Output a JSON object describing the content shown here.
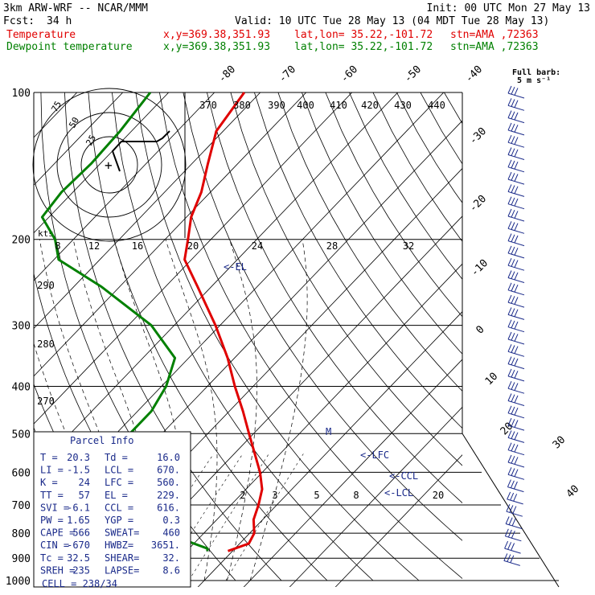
{
  "header": {
    "model": "3km ARW-WRF -- NCAR/MMM",
    "init": "Init: 00 UTC Mon 27 May 13",
    "fcst_label": "Fcst:",
    "fcst_value": "34 h",
    "valid": "Valid: 10 UTC Tue 28 May 13 (04 MDT Tue 28 May 13)"
  },
  "legend": [
    {
      "label": "Temperature",
      "coords": "x,y=369.38,351.93",
      "latlon": "lat,lon= 35.22,-101.72",
      "stn": "stn=AMA ,72363",
      "color": "#e00000"
    },
    {
      "label": "Dewpoint temperature",
      "coords": "x,y=369.38,351.93",
      "latlon": "lat,lon= 35.22,-101.72",
      "stn": "stn=AMA ,72363",
      "color": "#008000"
    }
  ],
  "full_barb": {
    "line1": "Full barb:",
    "line2": "5 m s⁻¹"
  },
  "hodograph": {
    "kts": "kts",
    "ring_labels": [
      "75",
      "50",
      "25"
    ]
  },
  "chart_data": {
    "type": "line",
    "chart_kind": "skew-T log-P sounding",
    "y_axis": {
      "scale": "log-pressure",
      "ticks": [
        "100",
        "200",
        "300",
        "400",
        "500",
        "600",
        "700",
        "800",
        "900",
        "1000"
      ]
    },
    "temperature_labels": [
      "-80",
      "-70",
      "-60",
      "-50",
      "-40",
      "-30",
      "-20",
      "-10",
      "0",
      "10",
      "20",
      "30",
      "40"
    ],
    "theta_e_labels": [
      "370",
      "380",
      "390",
      "400",
      "410",
      "420",
      "430",
      "440"
    ],
    "theta_labels_upper": [
      "8",
      "12",
      "16",
      "20",
      "24",
      "28",
      "32"
    ],
    "theta_labels_left": [
      "290",
      "280",
      "270"
    ],
    "mixing_ratio_labels": [
      "2",
      "3",
      "5",
      "8",
      "20"
    ],
    "annotations": [
      "<-EL",
      "<-LFC",
      "<-CCL",
      "<-LCL",
      "M"
    ],
    "series": [
      {
        "name": "Temperature",
        "color": "#e00000",
        "p": [
          100,
          120,
          140,
          160,
          180,
          200,
          220,
          250,
          300,
          350,
          400,
          450,
          500,
          550,
          600,
          650,
          700,
          750,
          800,
          840,
          870
        ],
        "t": [
          -73.5,
          -71.5,
          -66.5,
          -62,
          -59,
          -55,
          -51.5,
          -43,
          -31,
          -21.5,
          -14,
          -7,
          -1,
          4.5,
          9.5,
          13.5,
          16,
          18,
          21,
          22,
          19
        ]
      },
      {
        "name": "Dewpoint temperature",
        "color": "#008000",
        "p": [
          100,
          120,
          140,
          160,
          180,
          200,
          220,
          250,
          300,
          350,
          400,
          450,
          500,
          550,
          600,
          650,
          700,
          750,
          800,
          830,
          860,
          870
        ],
        "t": [
          -94,
          -92.5,
          -92,
          -92.5,
          -91.5,
          -84,
          -79,
          -64,
          -45,
          -33,
          -29,
          -27,
          -27,
          -20,
          -14,
          -11,
          -9,
          -8,
          -6,
          8,
          14,
          14.5
        ]
      }
    ],
    "wind_barbs": {
      "count": 39,
      "units": "m s⁻¹"
    }
  },
  "parcel_info": {
    "title": "Parcel Info",
    "rows": [
      [
        "T   =",
        "20.3",
        "Td  =",
        "16.0"
      ],
      [
        "LI  =",
        "-1.5",
        "LCL =",
        "670."
      ],
      [
        "K   =",
        "24",
        "LFC =",
        "560."
      ],
      [
        "TT  =",
        "57",
        "EL  =",
        "229."
      ],
      [
        "SVI =",
        "-6.1",
        "CCL =",
        "616."
      ],
      [
        "PW  =",
        "1.65",
        "YGP =",
        "0.3"
      ],
      [
        "CAPE =",
        "566",
        "SWEAT=",
        "460"
      ],
      [
        "CIN  =",
        "-670",
        "HWBZ=",
        "3651."
      ],
      [
        "Tc   =",
        "32.5",
        "SHEAR=",
        "32."
      ],
      [
        "SREH =",
        "235",
        "LAPSE=",
        "8.6"
      ]
    ],
    "cell": "CELL = 238/34"
  }
}
